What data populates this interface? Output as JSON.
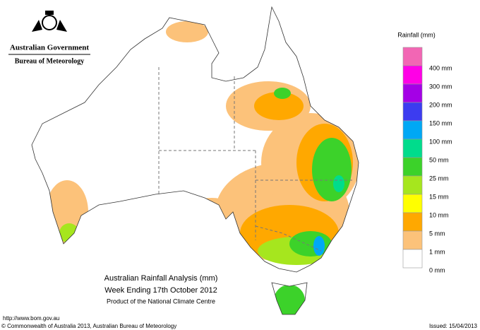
{
  "header": {
    "government": "Australian Government",
    "agency": "Bureau of Meteorology"
  },
  "map": {
    "title": "Australian Rainfall Analysis (mm)",
    "subtitle": "Week Ending 17th October 2012",
    "note": "Product of the National Climate Centre"
  },
  "legend": {
    "title": "Rainfall (mm)",
    "items": [
      {
        "label": "400 mm",
        "color": "#f266b4"
      },
      {
        "label": "300 mm",
        "color": "#ff00e6"
      },
      {
        "label": "200 mm",
        "color": "#a400e6"
      },
      {
        "label": "150 mm",
        "color": "#3c3cf0"
      },
      {
        "label": "100 mm",
        "color": "#00a8f5"
      },
      {
        "label": "50 mm",
        "color": "#00dc8c"
      },
      {
        "label": "25 mm",
        "color": "#3cd22a"
      },
      {
        "label": "15 mm",
        "color": "#a6e61e"
      },
      {
        "label": "10 mm",
        "color": "#ffff00"
      },
      {
        "label": "5 mm",
        "color": "#ffa800"
      },
      {
        "label": "1 mm",
        "color": "#fcc27a"
      },
      {
        "label": "0 mm",
        "color": "#ffffff"
      }
    ]
  },
  "footer": {
    "url": "http://www.bom.gov.au",
    "copyright": "© Commonwealth of Australia 2013, Australian Bureau of Meteorology",
    "issued": "Issued: 15/04/2013"
  }
}
